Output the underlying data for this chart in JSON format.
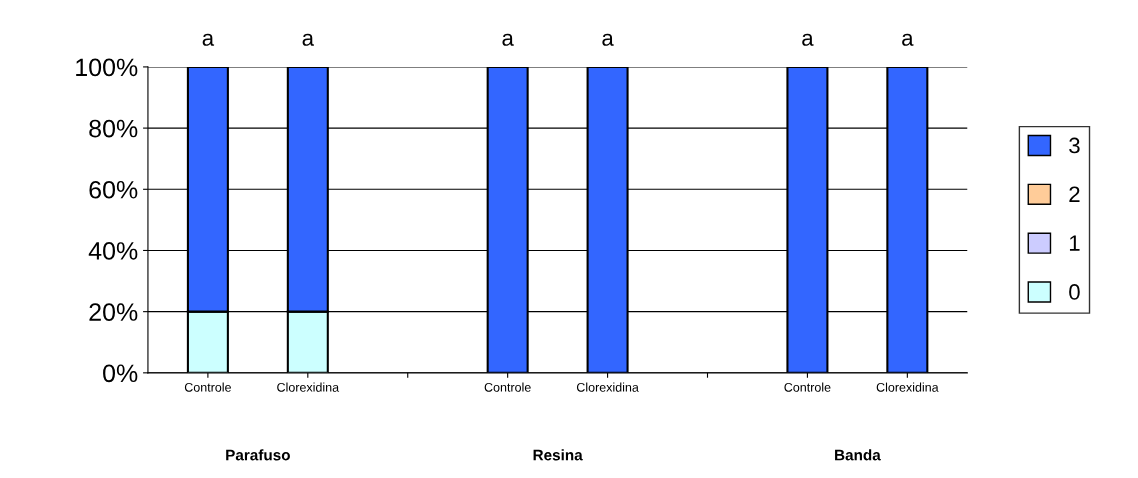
{
  "chart_data": {
    "type": "bar",
    "stacked": true,
    "categories": [
      "Controle",
      "Clorexidina",
      null,
      "Controle",
      "Clorexidina",
      null,
      "Controle",
      "Clorexidina"
    ],
    "series": [
      {
        "name": "0",
        "color": "#ccffff",
        "values": [
          20,
          20,
          null,
          0,
          0,
          null,
          0,
          0
        ]
      },
      {
        "name": "1",
        "color": "#ccccff",
        "values": [
          0,
          0,
          null,
          0,
          0,
          null,
          0,
          0
        ]
      },
      {
        "name": "2",
        "color": "#ffcc99",
        "values": [
          0,
          0,
          null,
          0,
          0,
          null,
          0,
          0
        ]
      },
      {
        "name": "3",
        "color": "#3366ff",
        "values": [
          80,
          80,
          null,
          100,
          100,
          null,
          100,
          100
        ],
        "value_labels": [
          "a",
          "a",
          null,
          "a",
          "a",
          null,
          "a",
          "a"
        ]
      }
    ],
    "ylim": [
      0,
      100
    ],
    "yticks": [
      {
        "value": 0,
        "label": "0%"
      },
      {
        "value": 20,
        "label": "20%"
      },
      {
        "value": 40,
        "label": "40%"
      },
      {
        "value": 60,
        "label": "60%"
      },
      {
        "value": 80,
        "label": "80%"
      },
      {
        "value": 100,
        "label": "100%"
      }
    ],
    "grid": "y",
    "legend": "right",
    "annotations": [
      "Parafuso",
      "Resina",
      "Banda"
    ]
  }
}
